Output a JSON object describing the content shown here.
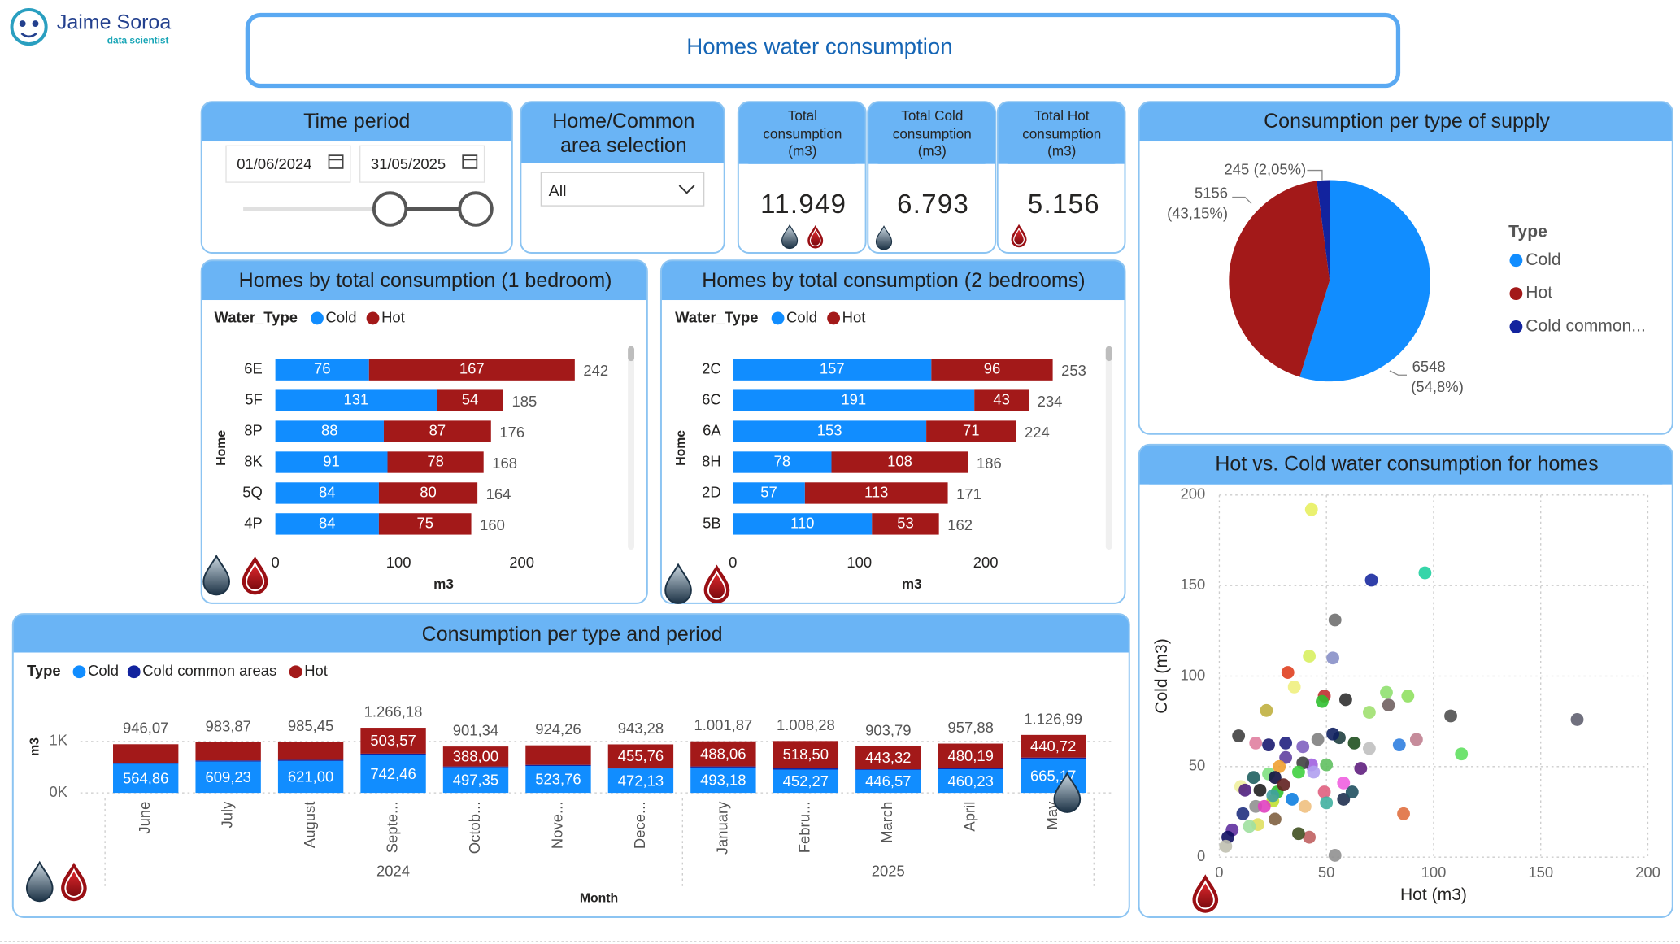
{
  "header": {
    "brand": "Jaime Soroa",
    "tagline": "data scientist",
    "title": "Homes water consumption"
  },
  "filters": {
    "time_period": {
      "title": "Time period",
      "start": "01/06/2024",
      "end": "31/05/2025"
    },
    "home_selection": {
      "title_lines": [
        "Home/Common",
        "area selection"
      ],
      "value": "All"
    }
  },
  "kpis": [
    {
      "label_lines": [
        "Total",
        "consumption",
        "(m3)"
      ],
      "value": "11.949"
    },
    {
      "label_lines": [
        "Total Cold",
        "consumption",
        "(m3)"
      ],
      "value": "6.793"
    },
    {
      "label_lines": [
        "Total Hot",
        "consumption",
        "(m3)"
      ],
      "value": "5.156"
    }
  ],
  "chart_data": [
    {
      "type": "hbar_stacked",
      "title": "Homes by total consumption (1 bedroom)",
      "legend_title": "Water_Type",
      "y_label": "Home",
      "x_label": "m3",
      "categories": [
        "6E",
        "5F",
        "8P",
        "8K",
        "5Q",
        "4P"
      ],
      "series": [
        {
          "name": "Cold",
          "color": "#118dff",
          "values": [
            76,
            131,
            88,
            91,
            84,
            84
          ]
        },
        {
          "name": "Hot",
          "color": "#a31919",
          "values": [
            167,
            54,
            87,
            78,
            80,
            75
          ]
        }
      ],
      "totals": [
        242,
        185,
        176,
        168,
        164,
        160
      ],
      "xlim": [
        0,
        260
      ],
      "xticks": [
        0,
        100,
        200
      ]
    },
    {
      "type": "hbar_stacked",
      "title": "Homes by total consumption (2 bedrooms)",
      "legend_title": "Water_Type",
      "y_label": "Home",
      "x_label": "m3",
      "categories": [
        "2C",
        "6C",
        "6A",
        "8H",
        "2D",
        "5B"
      ],
      "series": [
        {
          "name": "Cold",
          "color": "#118dff",
          "values": [
            157,
            191,
            153,
            78,
            57,
            110
          ]
        },
        {
          "name": "Hot",
          "color": "#a31919",
          "values": [
            96,
            43,
            71,
            108,
            113,
            53
          ]
        }
      ],
      "totals": [
        253,
        234,
        224,
        186,
        171,
        162
      ],
      "xlim": [
        0,
        260
      ],
      "xticks": [
        0,
        100,
        200
      ]
    },
    {
      "type": "pie",
      "title": "Consumption per type of supply",
      "legend_title": "Type",
      "categories": [
        "Cold",
        "Hot",
        "Cold common..."
      ],
      "values": [
        6548,
        5156,
        245
      ],
      "percent_labels": [
        "(54,8%)",
        "(43,15%)",
        "(2,05%)"
      ],
      "colors": [
        "#118dff",
        "#a31919",
        "#12239e"
      ]
    },
    {
      "type": "scatter",
      "title": "Hot vs. Cold water consumption for homes",
      "x_label": "Hot (m3)",
      "y_label": "Cold (m3)",
      "x": [
        43,
        96,
        71,
        54,
        53,
        42,
        32,
        167,
        108,
        113,
        88,
        79,
        78,
        92,
        84,
        86,
        70,
        59,
        49,
        48,
        35,
        22,
        9,
        54,
        42,
        58,
        62,
        66,
        70,
        63,
        56,
        53,
        46,
        50,
        43,
        44,
        58,
        49,
        50,
        40,
        31,
        23,
        17,
        39,
        31,
        39,
        28,
        23,
        37,
        26,
        16,
        10,
        12,
        19,
        27,
        34,
        25,
        17,
        11,
        18,
        26,
        6,
        4,
        3,
        14,
        37,
        21,
        30,
        25
      ],
      "values": [
        192,
        157,
        153,
        131,
        110,
        111,
        102,
        76,
        78,
        57,
        89,
        84,
        91,
        65,
        62,
        24,
        80,
        87,
        89,
        86,
        94,
        81,
        67,
        1,
        11,
        32,
        36,
        49,
        60,
        63,
        66,
        68,
        65,
        51,
        51,
        47,
        41,
        36,
        30,
        28,
        63,
        62,
        63,
        61,
        55,
        52,
        50,
        46,
        47,
        44,
        44,
        39,
        37,
        37,
        36,
        32,
        31,
        28,
        24,
        18,
        21,
        15,
        11,
        6,
        17,
        13,
        28,
        40,
        34
      ],
      "colors": [
        "#e8f060",
        "#20d0a0",
        "#1a2aa0",
        "#707070",
        "#8890c8",
        "#d8f060",
        "#e04020",
        "#606070",
        "#505050",
        "#60e060",
        "#90e060",
        "#706060",
        "#90e070",
        "#c08090",
        "#3080e0",
        "#e07040",
        "#a0e070",
        "#303030",
        "#c03030",
        "#30c030",
        "#f0f080",
        "#c0b040",
        "#404040",
        "#909090",
        "#c06060",
        "#203050",
        "#205060",
        "#602080",
        "#c0c0c0",
        "#205020",
        "#204040",
        "#102060",
        "#808080",
        "#60c060",
        "#a060e0",
        "#b0a0f0",
        "#f060e0",
        "#e06080",
        "#40b0a0",
        "#f0c080",
        "#202080",
        "#1a1a70",
        "#e080a0",
        "#8060c0",
        "#6040a0",
        "#404040",
        "#f0a030",
        "#80e080",
        "#40d040",
        "#101040",
        "#206060",
        "#f0f0a0",
        "#502080",
        "#202020",
        "#30c030",
        "#1080e0",
        "#c0e030",
        "#909090",
        "#203080",
        "#e0e060",
        "#806040",
        "#6030a0",
        "#101060",
        "#c0c0b0",
        "#a0e0a0",
        "#405020",
        "#e040c0",
        "#602020",
        "#40a0a0"
      ],
      "xlim": [
        0,
        200
      ],
      "ylim": [
        0,
        200
      ],
      "xticks": [
        0,
        50,
        100,
        150,
        200
      ],
      "yticks": [
        0,
        50,
        100,
        150,
        200
      ],
      "grid": true
    },
    {
      "type": "column_stacked",
      "title": "Consumption per type and period",
      "legend_title": "Type",
      "x_label": "Month",
      "y_label": "m3",
      "categories": [
        "June",
        "July",
        "August",
        "Septe...",
        "Octob...",
        "Nove...",
        "Dece...",
        "January",
        "Febru...",
        "March",
        "April",
        "May"
      ],
      "years": [
        "2024",
        "2024",
        "2024",
        "2024",
        "2024",
        "2024",
        "2024",
        "2025",
        "2025",
        "2025",
        "2025",
        "2025"
      ],
      "series": [
        {
          "name": "Cold",
          "color": "#118dff",
          "values": [
            564.86,
            609.23,
            621.0,
            742.46,
            497.35,
            523.76,
            472.13,
            493.18,
            452.27,
            446.57,
            460.23,
            665.17
          ],
          "value_labels": [
            "564,86",
            "609,23",
            "621,00",
            "742,46",
            "497,35",
            "523,76",
            "472,13",
            "493,18",
            "452,27",
            "446,57",
            "460,23",
            "665,17"
          ]
        },
        {
          "name": "Cold common areas",
          "color": "#12239e",
          "values": [
            20.7,
            20.7,
            20.7,
            20.15,
            16,
            20.7,
            15.39,
            20.63,
            37.51,
            13.9,
            17.46,
            21.1
          ]
        },
        {
          "name": "Hot",
          "color": "#a31919",
          "values": [
            360.51,
            353.94,
            343.75,
            503.57,
            388.0,
            379.8,
            455.76,
            488.06,
            518.5,
            443.32,
            480.19,
            440.72
          ],
          "value_labels": [
            null,
            null,
            null,
            "503,57",
            "388,00",
            null,
            "455,76",
            "488,06",
            "518,50",
            "443,32",
            "480,19",
            "440,72"
          ]
        }
      ],
      "totals": [
        946.07,
        983.87,
        985.45,
        1266.18,
        901.34,
        924.26,
        943.28,
        1001.87,
        1008.28,
        903.79,
        957.88,
        1126.99
      ],
      "total_labels": [
        "946,07",
        "983,87",
        "985,45",
        "1.266,18",
        "901,34",
        "924,26",
        "943,28",
        "1.001,87",
        "1.008,28",
        "903,79",
        "957,88",
        "1.126,99"
      ],
      "ylim": [
        0,
        1500
      ],
      "yticks": [
        {
          "value": 0,
          "label": "0K"
        },
        {
          "value": 1000,
          "label": "1K"
        }
      ]
    }
  ]
}
